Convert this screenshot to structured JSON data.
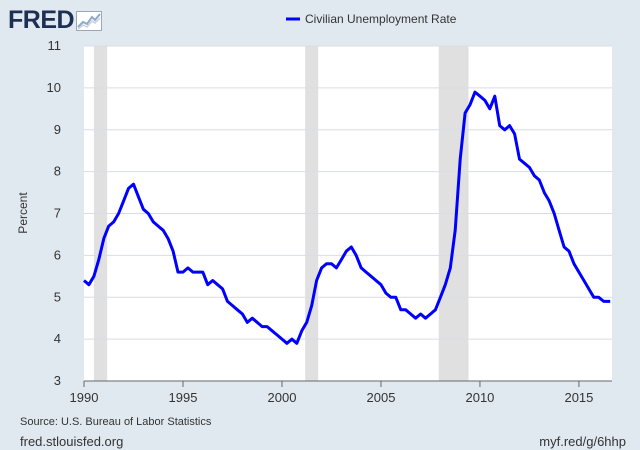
{
  "logo": {
    "text": "FRED",
    "icon": "chart-line-icon"
  },
  "footer": {
    "source": "Source: U.S. Bureau of Labor Statistics",
    "site_url": "fred.stlouisfed.org",
    "graph_url": "myf.red/g/6hhp"
  },
  "colors": {
    "background": "#e1e9f0",
    "plot_background": "#ffffff",
    "series": "#0000ff",
    "recession": "#e0e0e0",
    "grid": "#d9dde3",
    "logo": "#1d2f52"
  },
  "chart_data": {
    "type": "line",
    "title": "",
    "xlabel": "",
    "ylabel": "Percent",
    "ylim": [
      3,
      11
    ],
    "xlim": [
      1990,
      2016.67
    ],
    "yticks": [
      "3",
      "4",
      "5",
      "6",
      "7",
      "8",
      "9",
      "10",
      "11"
    ],
    "xticks": [
      "1990",
      "1995",
      "2000",
      "2005",
      "2010",
      "2015"
    ],
    "grid": true,
    "legend": "top-center",
    "recessions": [
      [
        1990.5,
        1991.17
      ],
      [
        2001.17,
        2001.83
      ],
      [
        2007.92,
        2009.42
      ]
    ],
    "series": [
      {
        "name": "Civilian Unemployment Rate",
        "x": [
          1990.0,
          1990.25,
          1990.5,
          1990.75,
          1991.0,
          1991.25,
          1991.5,
          1991.75,
          1992.0,
          1992.25,
          1992.5,
          1992.75,
          1993.0,
          1993.25,
          1993.5,
          1993.75,
          1994.0,
          1994.25,
          1994.5,
          1994.75,
          1995.0,
          1995.25,
          1995.5,
          1995.75,
          1996.0,
          1996.25,
          1996.5,
          1996.75,
          1997.0,
          1997.25,
          1997.5,
          1997.75,
          1998.0,
          1998.25,
          1998.5,
          1998.75,
          1999.0,
          1999.25,
          1999.5,
          1999.75,
          2000.0,
          2000.25,
          2000.5,
          2000.75,
          2001.0,
          2001.25,
          2001.5,
          2001.75,
          2002.0,
          2002.25,
          2002.5,
          2002.75,
          2003.0,
          2003.25,
          2003.5,
          2003.75,
          2004.0,
          2004.25,
          2004.5,
          2004.75,
          2005.0,
          2005.25,
          2005.5,
          2005.75,
          2006.0,
          2006.25,
          2006.5,
          2006.75,
          2007.0,
          2007.25,
          2007.5,
          2007.75,
          2008.0,
          2008.25,
          2008.5,
          2008.75,
          2009.0,
          2009.25,
          2009.5,
          2009.75,
          2010.0,
          2010.25,
          2010.5,
          2010.75,
          2011.0,
          2011.25,
          2011.5,
          2011.75,
          2012.0,
          2012.25,
          2012.5,
          2012.75,
          2013.0,
          2013.25,
          2013.5,
          2013.75,
          2014.0,
          2014.25,
          2014.5,
          2014.75,
          2015.0,
          2015.25,
          2015.5,
          2015.75,
          2016.0,
          2016.25,
          2016.42,
          2016.58
        ],
        "values": [
          5.4,
          5.3,
          5.5,
          5.9,
          6.4,
          6.7,
          6.8,
          7.0,
          7.3,
          7.6,
          7.7,
          7.4,
          7.1,
          7.0,
          6.8,
          6.7,
          6.6,
          6.4,
          6.1,
          5.6,
          5.6,
          5.7,
          5.6,
          5.6,
          5.6,
          5.3,
          5.4,
          5.3,
          5.2,
          4.9,
          4.8,
          4.7,
          4.6,
          4.4,
          4.5,
          4.4,
          4.3,
          4.3,
          4.2,
          4.1,
          4.0,
          3.9,
          4.0,
          3.9,
          4.2,
          4.4,
          4.8,
          5.4,
          5.7,
          5.8,
          5.8,
          5.7,
          5.9,
          6.1,
          6.2,
          6.0,
          5.7,
          5.6,
          5.5,
          5.4,
          5.3,
          5.1,
          5.0,
          5.0,
          4.7,
          4.7,
          4.6,
          4.5,
          4.6,
          4.5,
          4.6,
          4.7,
          5.0,
          5.3,
          5.7,
          6.6,
          8.3,
          9.4,
          9.6,
          9.9,
          9.8,
          9.7,
          9.5,
          9.8,
          9.1,
          9.0,
          9.1,
          8.9,
          8.3,
          8.2,
          8.1,
          7.9,
          7.8,
          7.5,
          7.3,
          7.0,
          6.6,
          6.2,
          6.1,
          5.8,
          5.6,
          5.4,
          5.2,
          5.0,
          5.0,
          4.9,
          4.9,
          4.9
        ]
      }
    ]
  }
}
